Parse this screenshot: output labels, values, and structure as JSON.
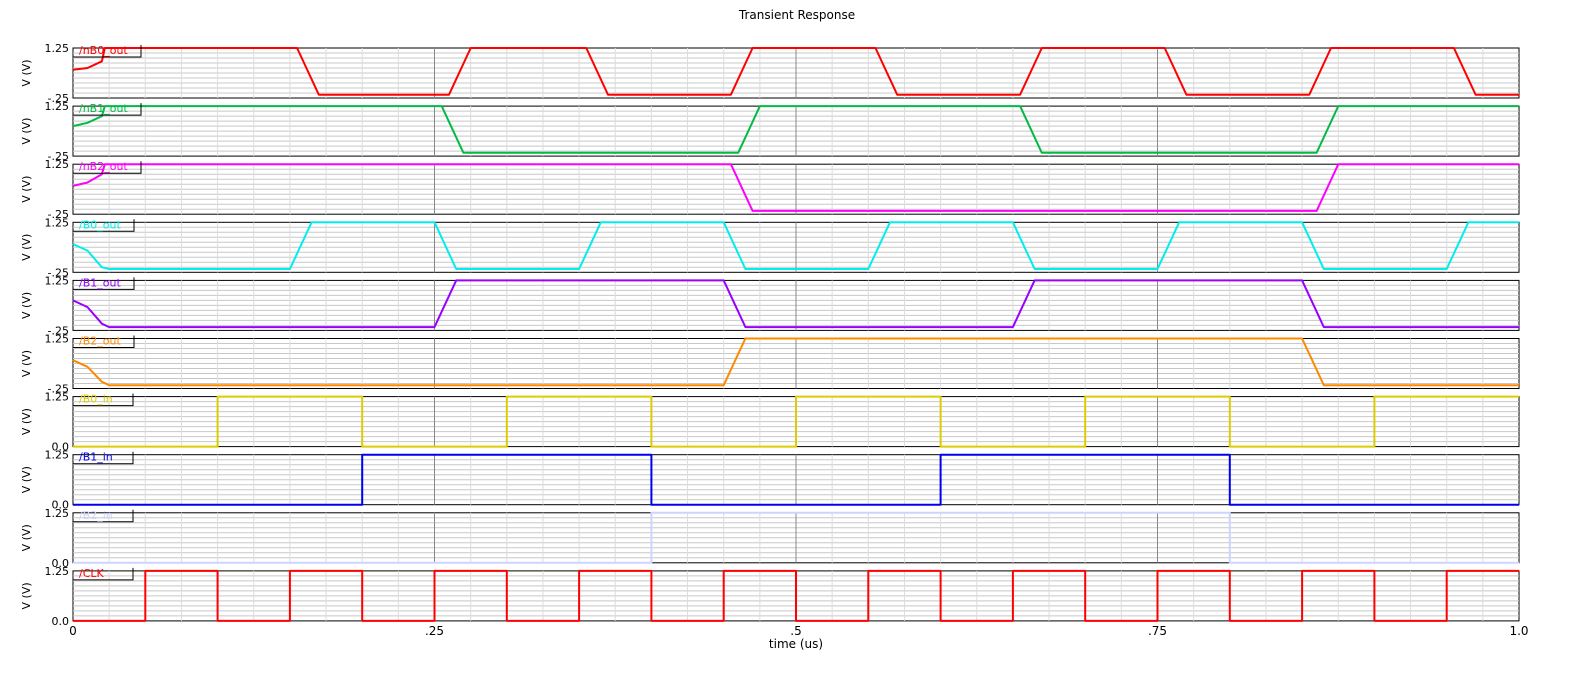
{
  "title": "Transient Response",
  "xlabel": "time (us)",
  "x_ticks": [
    "0",
    ".25",
    ".5",
    ".75",
    "1.0"
  ],
  "chart_data": {
    "type": "line",
    "title": "Transient Response",
    "xlabel": "time (us)",
    "xlim": [
      0,
      1.0
    ],
    "x_tick_values": [
      0,
      0.25,
      0.5,
      0.75,
      1.0
    ],
    "x_tick_labels": [
      "0",
      ".25",
      ".5",
      ".75",
      "1.0"
    ],
    "grid": true,
    "series": [
      {
        "name": "/nB0_out",
        "ylabel": "V (V)",
        "ylim": [
          -0.25,
          1.25
        ],
        "y_tick_labels": [
          "1.25",
          "-.25"
        ],
        "color": "#ff0000",
        "label_color": "#ff0000",
        "points": [
          [
            0,
            0.6
          ],
          [
            0.01,
            0.65
          ],
          [
            0.02,
            0.85
          ],
          [
            0.022,
            1.25
          ],
          [
            0.155,
            1.25
          ],
          [
            0.17,
            -0.15
          ],
          [
            0.26,
            -0.15
          ],
          [
            0.275,
            1.25
          ],
          [
            0.355,
            1.25
          ],
          [
            0.37,
            -0.15
          ],
          [
            0.455,
            -0.15
          ],
          [
            0.47,
            1.25
          ],
          [
            0.555,
            1.25
          ],
          [
            0.57,
            -0.15
          ],
          [
            0.655,
            -0.15
          ],
          [
            0.67,
            1.25
          ],
          [
            0.755,
            1.25
          ],
          [
            0.77,
            -0.15
          ],
          [
            0.855,
            -0.15
          ],
          [
            0.87,
            1.25
          ],
          [
            0.955,
            1.25
          ],
          [
            0.97,
            -0.15
          ],
          [
            1.0,
            -0.15
          ]
        ]
      },
      {
        "name": "/nB1_out",
        "ylabel": "V (V)",
        "ylim": [
          -0.25,
          1.25
        ],
        "y_tick_labels": [
          "1.25",
          "-.25"
        ],
        "color": "#00bb44",
        "label_color": "#00bb44",
        "points": [
          [
            0,
            0.65
          ],
          [
            0.01,
            0.75
          ],
          [
            0.02,
            0.95
          ],
          [
            0.022,
            1.25
          ],
          [
            0.255,
            1.25
          ],
          [
            0.27,
            -0.15
          ],
          [
            0.46,
            -0.15
          ],
          [
            0.475,
            1.25
          ],
          [
            0.655,
            1.25
          ],
          [
            0.67,
            -0.15
          ],
          [
            0.86,
            -0.15
          ],
          [
            0.875,
            1.25
          ],
          [
            1.0,
            1.25
          ]
        ]
      },
      {
        "name": "/nB2_out",
        "ylabel": "V (V)",
        "ylim": [
          -0.25,
          1.25
        ],
        "y_tick_labels": [
          "1.25",
          "-.25"
        ],
        "color": "#ff00ff",
        "label_color": "#ff00ff",
        "points": [
          [
            0,
            0.6
          ],
          [
            0.01,
            0.7
          ],
          [
            0.02,
            0.95
          ],
          [
            0.022,
            1.25
          ],
          [
            0.455,
            1.25
          ],
          [
            0.47,
            -0.15
          ],
          [
            0.86,
            -0.15
          ],
          [
            0.875,
            1.25
          ],
          [
            1.0,
            1.25
          ]
        ]
      },
      {
        "name": "/B0_out",
        "ylabel": "V (V)",
        "ylim": [
          -0.25,
          1.25
        ],
        "y_tick_labels": [
          "1.25",
          "-.25"
        ],
        "color": "#00eeee",
        "label_color": "#00eeee",
        "points": [
          [
            0,
            0.6
          ],
          [
            0.01,
            0.4
          ],
          [
            0.02,
            -0.1
          ],
          [
            0.025,
            -0.15
          ],
          [
            0.15,
            -0.15
          ],
          [
            0.165,
            1.25
          ],
          [
            0.25,
            1.25
          ],
          [
            0.265,
            -0.15
          ],
          [
            0.35,
            -0.15
          ],
          [
            0.365,
            1.25
          ],
          [
            0.45,
            1.25
          ],
          [
            0.465,
            -0.15
          ],
          [
            0.55,
            -0.15
          ],
          [
            0.565,
            1.25
          ],
          [
            0.65,
            1.25
          ],
          [
            0.665,
            -0.15
          ],
          [
            0.75,
            -0.15
          ],
          [
            0.765,
            1.25
          ],
          [
            0.85,
            1.25
          ],
          [
            0.865,
            -0.15
          ],
          [
            0.95,
            -0.15
          ],
          [
            0.965,
            1.25
          ],
          [
            1.0,
            1.25
          ]
        ]
      },
      {
        "name": "/B1_out",
        "ylabel": "V (V)",
        "ylim": [
          -0.25,
          1.25
        ],
        "y_tick_labels": [
          "1.25",
          "-.25"
        ],
        "color": "#9900ff",
        "label_color": "#9900ff",
        "points": [
          [
            0,
            0.65
          ],
          [
            0.01,
            0.45
          ],
          [
            0.02,
            -0.05
          ],
          [
            0.025,
            -0.15
          ],
          [
            0.25,
            -0.15
          ],
          [
            0.265,
            1.25
          ],
          [
            0.45,
            1.25
          ],
          [
            0.465,
            -0.15
          ],
          [
            0.65,
            -0.15
          ],
          [
            0.665,
            1.25
          ],
          [
            0.85,
            1.25
          ],
          [
            0.865,
            -0.15
          ],
          [
            1.0,
            -0.15
          ]
        ]
      },
      {
        "name": "/B2_out",
        "ylabel": "V (V)",
        "ylim": [
          -0.25,
          1.25
        ],
        "y_tick_labels": [
          "1.25",
          "-.25"
        ],
        "color": "#ff8800",
        "label_color": "#ff8800",
        "points": [
          [
            0,
            0.6
          ],
          [
            0.01,
            0.4
          ],
          [
            0.02,
            -0.05
          ],
          [
            0.025,
            -0.15
          ],
          [
            0.45,
            -0.15
          ],
          [
            0.465,
            1.25
          ],
          [
            0.85,
            1.25
          ],
          [
            0.865,
            -0.15
          ],
          [
            1.0,
            -0.15
          ]
        ]
      },
      {
        "name": "/B0_in",
        "ylabel": "V (V)",
        "ylim": [
          0.0,
          1.25
        ],
        "y_tick_labels": [
          "1.25",
          "0.0"
        ],
        "color": "#ddcc00",
        "label_color": "#ddcc00",
        "points": [
          [
            0,
            0
          ],
          [
            0.1,
            0
          ],
          [
            0.1,
            1.25
          ],
          [
            0.2,
            1.25
          ],
          [
            0.2,
            0
          ],
          [
            0.3,
            0
          ],
          [
            0.3,
            1.25
          ],
          [
            0.4,
            1.25
          ],
          [
            0.4,
            0
          ],
          [
            0.5,
            0
          ],
          [
            0.5,
            1.25
          ],
          [
            0.6,
            1.25
          ],
          [
            0.6,
            0
          ],
          [
            0.7,
            0
          ],
          [
            0.7,
            1.25
          ],
          [
            0.8,
            1.25
          ],
          [
            0.8,
            0
          ],
          [
            0.9,
            0
          ],
          [
            0.9,
            1.25
          ],
          [
            1.0,
            1.25
          ]
        ]
      },
      {
        "name": "/B1_in",
        "ylabel": "V (V)",
        "ylim": [
          0.0,
          1.25
        ],
        "y_tick_labels": [
          "1.25",
          "0.0"
        ],
        "color": "#0000ee",
        "label_color": "#0000ee",
        "points": [
          [
            0,
            0
          ],
          [
            0.2,
            0
          ],
          [
            0.2,
            1.25
          ],
          [
            0.4,
            1.25
          ],
          [
            0.4,
            0
          ],
          [
            0.6,
            0
          ],
          [
            0.6,
            1.25
          ],
          [
            0.8,
            1.25
          ],
          [
            0.8,
            0
          ],
          [
            1.0,
            0
          ]
        ]
      },
      {
        "name": "/B2_in",
        "ylabel": "V (V)",
        "ylim": [
          0.0,
          1.25
        ],
        "y_tick_labels": [
          "1.25",
          "0.0"
        ],
        "color": "#ccd4ff",
        "label_color": "#ccd4ff",
        "points": [
          [
            0,
            0
          ],
          [
            0.4,
            0
          ],
          [
            0.4,
            1.25
          ],
          [
            0.8,
            1.25
          ],
          [
            0.8,
            0
          ],
          [
            1.0,
            0
          ]
        ]
      },
      {
        "name": "/CLK",
        "ylabel": "V (V)",
        "ylim": [
          0.0,
          1.25
        ],
        "y_tick_labels": [
          "1.25",
          "0.0"
        ],
        "color": "#ff0000",
        "label_color": "#ff0000",
        "points": [
          [
            0,
            0
          ],
          [
            0.05,
            0
          ],
          [
            0.05,
            1.25
          ],
          [
            0.1,
            1.25
          ],
          [
            0.1,
            0
          ],
          [
            0.15,
            0
          ],
          [
            0.15,
            1.25
          ],
          [
            0.2,
            1.25
          ],
          [
            0.2,
            0
          ],
          [
            0.25,
            0
          ],
          [
            0.25,
            1.25
          ],
          [
            0.3,
            1.25
          ],
          [
            0.3,
            0
          ],
          [
            0.35,
            0
          ],
          [
            0.35,
            1.25
          ],
          [
            0.4,
            1.25
          ],
          [
            0.4,
            0
          ],
          [
            0.45,
            0
          ],
          [
            0.45,
            1.25
          ],
          [
            0.5,
            1.25
          ],
          [
            0.5,
            0
          ],
          [
            0.55,
            0
          ],
          [
            0.55,
            1.25
          ],
          [
            0.6,
            1.25
          ],
          [
            0.6,
            0
          ],
          [
            0.65,
            0
          ],
          [
            0.65,
            1.25
          ],
          [
            0.7,
            1.25
          ],
          [
            0.7,
            0
          ],
          [
            0.75,
            0
          ],
          [
            0.75,
            1.25
          ],
          [
            0.8,
            1.25
          ],
          [
            0.8,
            0
          ],
          [
            0.85,
            0
          ],
          [
            0.85,
            1.25
          ],
          [
            0.9,
            1.25
          ],
          [
            0.9,
            0
          ],
          [
            0.95,
            0
          ],
          [
            0.95,
            1.25
          ],
          [
            1.0,
            1.25
          ]
        ]
      }
    ]
  }
}
